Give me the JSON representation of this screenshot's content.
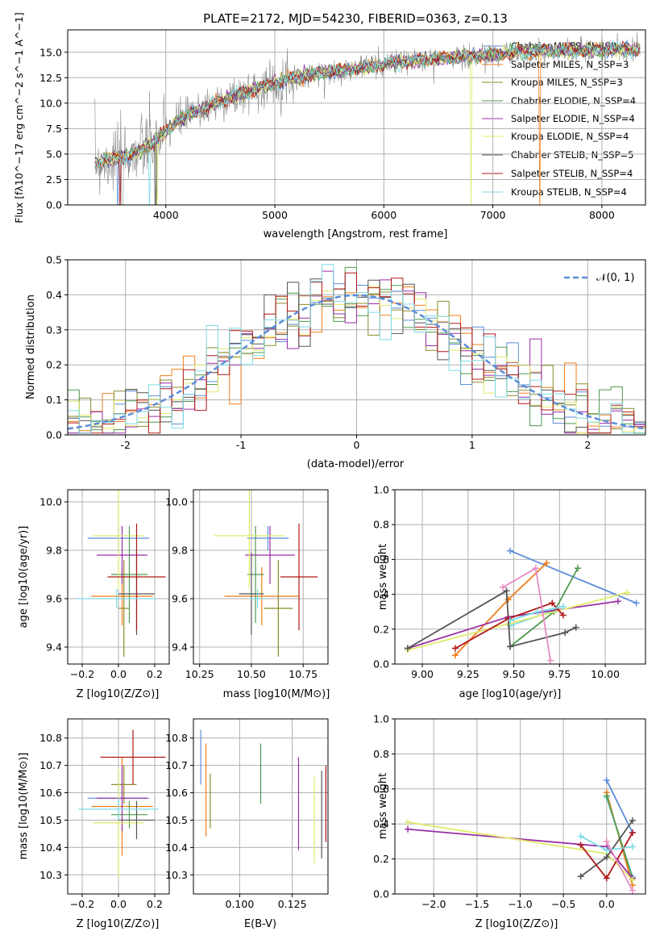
{
  "colors": [
    "#5b8dd9",
    "#f07e1a",
    "#8b8b2a",
    "#4f9a4f",
    "#9a2ea6",
    "#e0ea6a",
    "#555555",
    "#b01818",
    "#7ddbe6"
  ],
  "chart_data": [
    {
      "type": "line",
      "title": "PLATE=2172, MJD=54230, FIBERID=0363, z=0.13",
      "xlabel": "wavelength [Angstrom, rest frame]",
      "ylabel": "Flux [fλ10^−17 erg cm^−2 s^−1 A^−1]",
      "xlim": [
        3100,
        8400
      ],
      "ylim": [
        0,
        17.2
      ],
      "xticks": [
        4000,
        5000,
        6000,
        7000,
        8000
      ],
      "yticks": [
        0.0,
        2.5,
        5.0,
        7.5,
        10.0,
        12.5,
        15.0
      ],
      "ytick_labels": [
        "0.0",
        "2.5",
        "5.0",
        "7.5",
        "10.0",
        "12.5",
        "15.0"
      ],
      "legend_position": "top-right",
      "series": [
        {
          "name": "Chabrier MILES, N_SSP=2"
        },
        {
          "name": "Salpeter MILES, N_SSP=3"
        },
        {
          "name": "Kroupa MILES, N_SSP=3"
        },
        {
          "name": "Chabrier ELODIE, N_SSP=4"
        },
        {
          "name": "Salpeter ELODIE, N_SSP=4"
        },
        {
          "name": "Kroupa ELODIE, N_SSP=4"
        },
        {
          "name": "Chabrier STELIB, N_SSP=5"
        },
        {
          "name": "Salpeter STELIB, N_SSP=4"
        },
        {
          "name": "Kroupa STELIB, N_SSP=4"
        }
      ],
      "model_continuum": {
        "x": [
          3350,
          3500,
          3700,
          3900,
          4100,
          4300,
          4500,
          4800,
          5100,
          5400,
          5800,
          6200,
          6600,
          7000,
          7400,
          7800,
          8300
        ],
        "y": [
          4.2,
          4.4,
          5.0,
          6.2,
          8.2,
          9.2,
          10.2,
          11.3,
          12.3,
          12.9,
          13.5,
          14.1,
          14.4,
          14.8,
          15.1,
          15.2,
          15.3
        ]
      }
    },
    {
      "type": "histogram",
      "xlabel": "(data-model)/error",
      "ylabel": "Normed distribution",
      "xlim": [
        -2.5,
        2.5
      ],
      "ylim": [
        0,
        0.5
      ],
      "xticks": [
        -2,
        -1,
        0,
        1,
        2
      ],
      "yticks": [
        0.0,
        0.1,
        0.2,
        0.3,
        0.4,
        0.5
      ],
      "ytick_labels": [
        "0.0",
        "0.1",
        "0.2",
        "0.3",
        "0.4",
        "0.5"
      ],
      "legend": "𝒩(0, 1)",
      "legend_position": "top-right"
    },
    {
      "type": "scatter",
      "xlabel": "Z [log10(Z/Z⊙)]",
      "ylabel": "age  [log10(age/yr)]",
      "xlim": [
        -0.28,
        0.28
      ],
      "ylim": [
        9.33,
        10.05
      ],
      "xticks": [
        -0.2,
        0.0,
        0.2
      ],
      "xtick_labels": [
        "−0.2",
        "0.0",
        "0.2"
      ],
      "yticks": [
        9.4,
        9.6,
        9.8,
        10.0
      ],
      "ytick_labels": [
        "9.4",
        "9.6",
        "9.8",
        "10.0"
      ],
      "points": [
        {
          "x": 0.0,
          "y": 9.85,
          "xerr": 0.17,
          "yerr": 0.05
        },
        {
          "x": 0.02,
          "y": 9.61,
          "xerr": 0.17,
          "yerr": 0.12
        },
        {
          "x": 0.03,
          "y": 9.56,
          "xerr": 0.03,
          "yerr": 0.2
        },
        {
          "x": 0.06,
          "y": 9.7,
          "xerr": 0.1,
          "yerr": 0.2
        },
        {
          "x": 0.02,
          "y": 9.78,
          "xerr": 0.14,
          "yerr": 0.12
        },
        {
          "x": 0.0,
          "y": 9.86,
          "xerr": 0.14,
          "yerr": 0.22
        },
        {
          "x": 0.1,
          "y": 9.62,
          "xerr": 0.1,
          "yerr": 0.17
        },
        {
          "x": 0.1,
          "y": 9.69,
          "xerr": 0.16,
          "yerr": 0.22
        },
        {
          "x": -0.01,
          "y": 9.6,
          "xerr": 0.22,
          "yerr": 0.04
        }
      ]
    },
    {
      "type": "scatter",
      "xlabel": "mass [log10(M/M⊙)]",
      "ylabel": "",
      "xlim": [
        10.22,
        10.87
      ],
      "ylim": [
        9.33,
        10.05
      ],
      "xticks": [
        10.25,
        10.5,
        10.75
      ],
      "xtick_labels": [
        "10.25",
        "10.50",
        "10.75"
      ],
      "yticks": [
        9.4,
        9.6,
        9.8,
        10.0
      ],
      "ytick_labels": [
        "9.4",
        "9.6",
        "9.8",
        "10.0"
      ],
      "points": [
        {
          "x": 10.58,
          "y": 9.85,
          "xerr": 0.1,
          "yerr": 0.05
        },
        {
          "x": 10.55,
          "y": 9.61,
          "xerr": 0.18,
          "yerr": 0.12
        },
        {
          "x": 10.63,
          "y": 9.56,
          "xerr": 0.07,
          "yerr": 0.2
        },
        {
          "x": 10.52,
          "y": 9.7,
          "xerr": 0.04,
          "yerr": 0.2
        },
        {
          "x": 10.59,
          "y": 9.78,
          "xerr": 0.12,
          "yerr": 0.12
        },
        {
          "x": 10.49,
          "y": 9.86,
          "xerr": 0.17,
          "yerr": 0.22
        },
        {
          "x": 10.5,
          "y": 9.62,
          "xerr": 0.06,
          "yerr": 0.17
        },
        {
          "x": 10.73,
          "y": 9.69,
          "xerr": 0.09,
          "yerr": 0.22
        },
        {
          "x": 10.53,
          "y": 9.6,
          "xerr": 0.04,
          "yerr": 0.04
        }
      ]
    },
    {
      "type": "line",
      "xlabel": "age  [log10(age/yr)]",
      "ylabel": "mass weight",
      "xlim": [
        8.85,
        10.22
      ],
      "ylim": [
        0,
        1.0
      ],
      "xticks": [
        9.0,
        9.25,
        9.5,
        9.75,
        10.0
      ],
      "xtick_labels": [
        "9.00",
        "9.25",
        "9.50",
        "9.75",
        "10.00"
      ],
      "yticks": [
        0.0,
        0.2,
        0.4,
        0.6,
        0.8,
        1.0
      ],
      "ytick_labels": [
        "0.0",
        "0.2",
        "0.4",
        "0.6",
        "0.8",
        "1.0"
      ],
      "series": [
        {
          "x": [
            9.48,
            10.17
          ],
          "y": [
            0.65,
            0.35
          ]
        },
        {
          "x": [
            9.18,
            9.47,
            9.68
          ],
          "y": [
            0.05,
            0.37,
            0.58
          ]
        },
        {
          "x": [
            9.48,
            9.7
          ],
          "y": [
            0.22,
            0.3
          ]
        },
        {
          "x": [
            9.48,
            9.72,
            9.85
          ],
          "y": [
            0.1,
            0.3,
            0.55
          ]
        },
        {
          "x": [
            8.92,
            9.47,
            10.07
          ],
          "y": [
            0.09,
            0.27,
            0.36
          ]
        },
        {
          "x": [
            8.92,
            9.47,
            10.12
          ],
          "y": [
            0.08,
            0.23,
            0.41
          ]
        },
        {
          "x": [
            8.92,
            9.46,
            9.48,
            9.78,
            9.84
          ],
          "y": [
            0.09,
            0.42,
            0.1,
            0.18,
            0.21
          ]
        },
        {
          "x": [
            9.18,
            9.47,
            9.71,
            9.77
          ],
          "y": [
            0.09,
            0.26,
            0.35,
            0.28
          ]
        },
        {
          "x": [
            9.48,
            9.63,
            9.77
          ],
          "y": [
            0.25,
            0.3,
            0.33
          ]
        },
        {
          "x": [
            9.44,
            9.62,
            9.7
          ],
          "y": [
            0.44,
            0.55,
            0.02
          ]
        }
      ]
    },
    {
      "type": "scatter",
      "xlabel": "Z [log10(Z/Z⊙)]",
      "ylabel": "mass [log10(M/M⊙)]",
      "xlim": [
        -0.28,
        0.28
      ],
      "ylim": [
        10.23,
        10.87
      ],
      "xticks": [
        -0.2,
        0.0,
        0.2
      ],
      "xtick_labels": [
        "−0.2",
        "0.0",
        "0.2"
      ],
      "yticks": [
        10.3,
        10.4,
        10.5,
        10.6,
        10.7,
        10.8
      ],
      "ytick_labels": [
        "10.3",
        "10.4",
        "10.5",
        "10.6",
        "10.7",
        "10.8"
      ],
      "points": [
        {
          "x": 0.0,
          "y": 10.58,
          "xerr": 0.17,
          "yerr": 0.1
        },
        {
          "x": 0.02,
          "y": 10.55,
          "xerr": 0.17,
          "yerr": 0.18
        },
        {
          "x": 0.03,
          "y": 10.63,
          "xerr": 0.07,
          "yerr": 0.07
        },
        {
          "x": 0.06,
          "y": 10.52,
          "xerr": 0.1,
          "yerr": 0.05
        },
        {
          "x": 0.02,
          "y": 10.58,
          "xerr": 0.14,
          "yerr": 0.12
        },
        {
          "x": 0.0,
          "y": 10.49,
          "xerr": 0.14,
          "yerr": 0.2
        },
        {
          "x": 0.1,
          "y": 10.5,
          "xerr": 0.1,
          "yerr": 0.07
        },
        {
          "x": 0.08,
          "y": 10.73,
          "xerr": 0.18,
          "yerr": 0.1
        },
        {
          "x": 0.0,
          "y": 10.54,
          "xerr": 0.22,
          "yerr": 0.04
        }
      ]
    },
    {
      "type": "scatter",
      "xlabel": "E(B-V)",
      "ylabel": "",
      "xlim": [
        0.078,
        0.142
      ],
      "ylim": [
        10.23,
        10.87
      ],
      "xticks": [
        0.1,
        0.125
      ],
      "xtick_labels": [
        "0.100",
        "0.125"
      ],
      "yticks": [
        10.3,
        10.4,
        10.5,
        10.6,
        10.7,
        10.8
      ],
      "ytick_labels": [
        "10.3",
        "10.4",
        "10.5",
        "10.6",
        "10.7",
        "10.8"
      ],
      "points": [
        {
          "x": 0.0815,
          "y": 10.73,
          "yerr": 0.1
        },
        {
          "x": 0.084,
          "y": 10.61,
          "yerr": 0.17
        },
        {
          "x": 0.086,
          "y": 10.57,
          "yerr": 0.1
        },
        {
          "x": 0.11,
          "y": 10.67,
          "yerr": 0.11
        },
        {
          "x": 0.128,
          "y": 10.56,
          "yerr": 0.17
        },
        {
          "x": 0.1355,
          "y": 10.5,
          "yerr": 0.16
        },
        {
          "x": 0.139,
          "y": 10.52,
          "yerr": 0.16
        },
        {
          "x": 0.141,
          "y": 10.56,
          "yerr": 0.14
        }
      ]
    },
    {
      "type": "line",
      "xlabel": "Z [log10(Z/Z⊙)]",
      "ylabel": "mass weight",
      "xlim": [
        -2.45,
        0.45
      ],
      "ylim": [
        0,
        1.0
      ],
      "xticks": [
        -2.0,
        -1.5,
        -1.0,
        -0.5,
        0.0
      ],
      "xtick_labels": [
        "−2.0",
        "−1.5",
        "−1.0",
        "−0.5",
        "0.0"
      ],
      "yticks": [
        0.0,
        0.2,
        0.4,
        0.6,
        0.8,
        1.0
      ],
      "ytick_labels": [
        "0.0",
        "0.2",
        "0.4",
        "0.6",
        "0.8",
        "1.0"
      ],
      "series": [
        {
          "x": [
            0.0,
            0.3
          ],
          "y": [
            0.65,
            0.35
          ]
        },
        {
          "x": [
            0.0,
            0.3
          ],
          "y": [
            0.58,
            0.05
          ]
        },
        {
          "x": [
            0.0,
            0.3
          ],
          "y": [
            0.55,
            0.1
          ]
        },
        {
          "x": [
            0.0,
            0.3
          ],
          "y": [
            0.56,
            0.09
          ]
        },
        {
          "x": [
            -2.3,
            0.0,
            0.3
          ],
          "y": [
            0.37,
            0.27,
            0.09
          ]
        },
        {
          "x": [
            -2.3,
            0.0,
            0.3
          ],
          "y": [
            0.41,
            0.23,
            0.08
          ]
        },
        {
          "x": [
            -0.3,
            0.0,
            0.3
          ],
          "y": [
            0.1,
            0.21,
            0.42
          ]
        },
        {
          "x": [
            -0.3,
            0.0,
            0.3
          ],
          "y": [
            0.28,
            0.09,
            0.35
          ]
        },
        {
          "x": [
            -0.3,
            0.0,
            0.3
          ],
          "y": [
            0.33,
            0.25,
            0.27
          ]
        },
        {
          "x": [
            0.0,
            0.3
          ],
          "y": [
            0.3,
            0.02
          ]
        }
      ]
    }
  ]
}
